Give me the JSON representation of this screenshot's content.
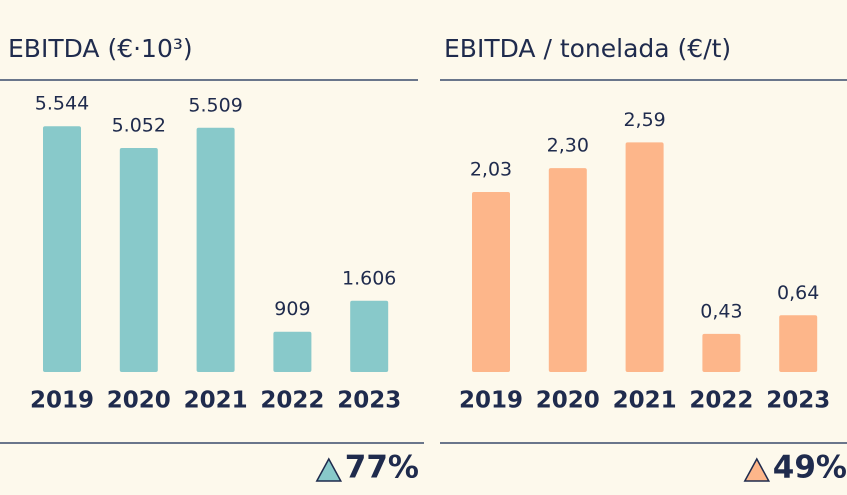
{
  "chart_data": [
    {
      "type": "bar",
      "title": "EBITDA (€·10³)",
      "categories": [
        "2019",
        "2020",
        "2021",
        "2022",
        "2023"
      ],
      "values": [
        5544,
        5052,
        5509,
        909,
        1606
      ],
      "value_labels": [
        "5.544",
        "5.052",
        "5.509",
        "909",
        "1.606"
      ],
      "color": "#88c9ca",
      "ylim": [
        0,
        6000
      ],
      "annotation": "77%"
    },
    {
      "type": "bar",
      "title": "EBITDA / tonelada (€/t)",
      "categories": [
        "2019",
        "2020",
        "2021",
        "2022",
        "2023"
      ],
      "values": [
        2.03,
        2.3,
        2.59,
        0.43,
        0.64
      ],
      "value_labels": [
        "2,03",
        "2,30",
        "2,59",
        "0,43",
        "0,64"
      ],
      "color": "#fdb68a",
      "ylim": [
        0,
        3.0
      ],
      "annotation": "49%"
    }
  ]
}
